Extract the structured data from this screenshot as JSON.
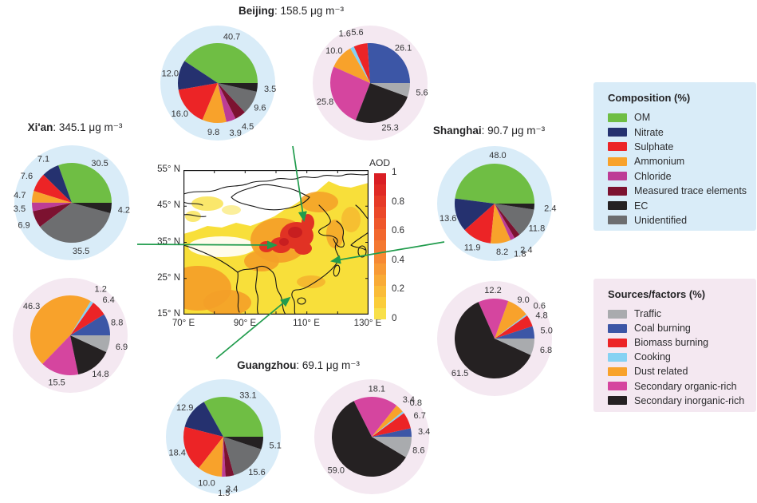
{
  "cities": [
    {
      "id": "beijing",
      "name": "Beijing",
      "suffix": ": 158.5 μg m⁻³"
    },
    {
      "id": "xian",
      "name": "Xi'an",
      "suffix": ": 345.1 μg m⁻³"
    },
    {
      "id": "shanghai",
      "name": "Shanghai",
      "suffix": ": 90.7 μg m⁻³"
    },
    {
      "id": "guangzhou",
      "name": "Guangzhou",
      "suffix": ": 69.1 μg m⁻³"
    }
  ],
  "legends": {
    "composition": {
      "title": "Composition (%)",
      "bg": "#d9ecf8",
      "items": [
        {
          "label": "OM",
          "color": "#6fbe44"
        },
        {
          "label": "Nitrate",
          "color": "#25316f"
        },
        {
          "label": "Sulphate",
          "color": "#ec2426"
        },
        {
          "label": "Ammonium",
          "color": "#f8a22b"
        },
        {
          "label": "Chloride",
          "color": "#bd3c96"
        },
        {
          "label": "Measured trace elements",
          "color": "#7c1230"
        },
        {
          "label": "EC",
          "color": "#252122"
        },
        {
          "label": "Unidentified",
          "color": "#6d6e70"
        }
      ]
    },
    "sources": {
      "title": "Sources/factors (%)",
      "bg": "#f4e8f1",
      "items": [
        {
          "label": "Traffic",
          "color": "#a9abae"
        },
        {
          "label": "Coal burning",
          "color": "#3c56a6"
        },
        {
          "label": "Biomass burning",
          "color": "#ec2426"
        },
        {
          "label": "Cooking",
          "color": "#85d2f3"
        },
        {
          "label": "Dust related",
          "color": "#f8a22b"
        },
        {
          "label": "Secondary organic-rich",
          "color": "#d5459f"
        },
        {
          "label": "Secondary inorganic-rich",
          "color": "#252122"
        }
      ]
    }
  },
  "map": {
    "colorbar_label": "AOD",
    "colorbar_ticks": [
      "1",
      "0.8",
      "0.6",
      "0.4",
      "0.2",
      "0"
    ],
    "colorbar_colors": [
      "#d91e24",
      "#e02a25",
      "#e63a27",
      "#eb4829",
      "#ef572b",
      "#f2672e",
      "#f47831",
      "#f68933",
      "#f89a35",
      "#f9ab36",
      "#fabc38",
      "#fbcd3a",
      "#f8e04a"
    ],
    "lat_labels": [
      "55° N",
      "45° N",
      "35° N",
      "25° N",
      "15° N"
    ],
    "lon_labels": [
      "70° E",
      "90° E",
      "110° E",
      "130° E"
    ],
    "arrow_color": "#219c4d"
  },
  "chart_data": [
    {
      "type": "pie",
      "id": "beijing-composition",
      "city": "Beijing",
      "kind": "composition",
      "slices": [
        {
          "name": "OM",
          "value": 40.7
        },
        {
          "name": "Nitrate",
          "value": 12.0
        },
        {
          "name": "Sulphate",
          "value": 16.0
        },
        {
          "name": "Ammonium",
          "value": 9.8
        },
        {
          "name": "Chloride",
          "value": 3.9
        },
        {
          "name": "Measured trace elements",
          "value": 4.5
        },
        {
          "name": "Unidentified",
          "value": 9.6
        },
        {
          "name": "EC",
          "value": 3.5
        }
      ]
    },
    {
      "type": "pie",
      "id": "beijing-sources",
      "city": "Beijing",
      "kind": "sources",
      "slices": [
        {
          "name": "Coal burning",
          "value": 26.1
        },
        {
          "name": "Biomass burning",
          "value": 5.6
        },
        {
          "name": "Cooking",
          "value": 1.6
        },
        {
          "name": "Dust related",
          "value": 10.0
        },
        {
          "name": "Secondary organic-rich",
          "value": 25.8
        },
        {
          "name": "Secondary inorganic-rich",
          "value": 25.3
        },
        {
          "name": "Traffic",
          "value": 5.6
        }
      ]
    },
    {
      "type": "pie",
      "id": "xian-composition",
      "city": "Xi'an",
      "kind": "composition",
      "slices": [
        {
          "name": "OM",
          "value": 30.5
        },
        {
          "name": "Nitrate",
          "value": 7.1
        },
        {
          "name": "Sulphate",
          "value": 7.6
        },
        {
          "name": "Ammonium",
          "value": 4.7
        },
        {
          "name": "Chloride",
          "value": 3.5
        },
        {
          "name": "Measured trace elements",
          "value": 6.9
        },
        {
          "name": "Unidentified",
          "value": 35.5
        },
        {
          "name": "EC",
          "value": 4.2
        }
      ]
    },
    {
      "type": "pie",
      "id": "xian-sources",
      "city": "Xi'an",
      "kind": "sources",
      "slices": [
        {
          "name": "Coal burning",
          "value": 8.8
        },
        {
          "name": "Biomass burning",
          "value": 6.4
        },
        {
          "name": "Cooking",
          "value": 1.2
        },
        {
          "name": "Dust related",
          "value": 46.3
        },
        {
          "name": "Secondary organic-rich",
          "value": 15.5
        },
        {
          "name": "Secondary inorganic-rich",
          "value": 14.8
        },
        {
          "name": "Traffic",
          "value": 6.9
        }
      ]
    },
    {
      "type": "pie",
      "id": "shanghai-composition",
      "city": "Shanghai",
      "kind": "composition",
      "slices": [
        {
          "name": "OM",
          "value": 48.0
        },
        {
          "name": "Nitrate",
          "value": 13.6
        },
        {
          "name": "Sulphate",
          "value": 11.9
        },
        {
          "name": "Ammonium",
          "value": 8.2
        },
        {
          "name": "Chloride",
          "value": 1.8
        },
        {
          "name": "Measured trace elements",
          "value": 2.4
        },
        {
          "name": "Unidentified",
          "value": 11.8
        },
        {
          "name": "EC",
          "value": 2.4
        }
      ]
    },
    {
      "type": "pie",
      "id": "shanghai-sources",
      "city": "Shanghai",
      "kind": "sources",
      "slices": [
        {
          "name": "Coal burning",
          "value": 5.0
        },
        {
          "name": "Biomass burning",
          "value": 4.8
        },
        {
          "name": "Cooking",
          "value": 0.6
        },
        {
          "name": "Dust related",
          "value": 9.0
        },
        {
          "name": "Secondary organic-rich",
          "value": 12.2
        },
        {
          "name": "Secondary inorganic-rich",
          "value": 61.5
        },
        {
          "name": "Traffic",
          "value": 6.8
        }
      ]
    },
    {
      "type": "pie",
      "id": "guangzhou-composition",
      "city": "Guangzhou",
      "kind": "composition",
      "slices": [
        {
          "name": "OM",
          "value": 33.1
        },
        {
          "name": "Nitrate",
          "value": 12.9
        },
        {
          "name": "Sulphate",
          "value": 18.4
        },
        {
          "name": "Ammonium",
          "value": 10.0
        },
        {
          "name": "Chloride",
          "value": 1.5
        },
        {
          "name": "Measured trace elements",
          "value": 3.4
        },
        {
          "name": "Unidentified",
          "value": 15.6
        },
        {
          "name": "EC",
          "value": 5.1
        }
      ]
    },
    {
      "type": "pie",
      "id": "guangzhou-sources",
      "city": "Guangzhou",
      "kind": "sources",
      "slices": [
        {
          "name": "Coal burning",
          "value": 3.4
        },
        {
          "name": "Biomass burning",
          "value": 6.7
        },
        {
          "name": "Cooking",
          "value": 0.8
        },
        {
          "name": "Dust related",
          "value": 3.4
        },
        {
          "name": "Secondary organic-rich",
          "value": 18.1
        },
        {
          "name": "Secondary inorganic-rich",
          "value": 59.0
        },
        {
          "name": "Traffic",
          "value": 8.6
        }
      ]
    }
  ]
}
